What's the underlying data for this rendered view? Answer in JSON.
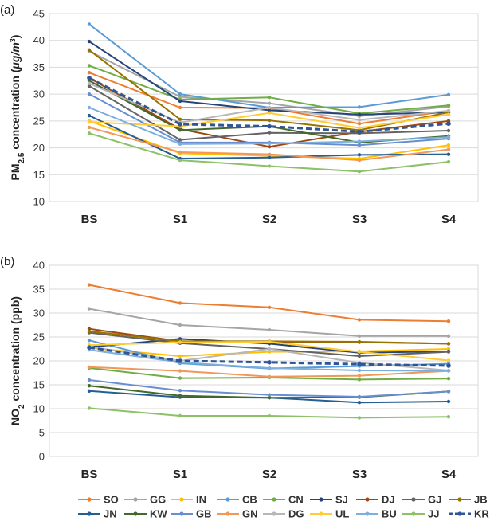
{
  "chart_data": [
    {
      "type": "line",
      "panel_label": "(a)",
      "ylabel": "PM2.5 concentration (μg/m³)",
      "ylabel_parts": {
        "pre": "PM",
        "sub": "2.5",
        "mid": " concentration (",
        "unit": "μg/m",
        "sup": "3",
        "post": ")"
      },
      "ylim": [
        10,
        45
      ],
      "yticks": [
        "10",
        "15",
        "20",
        "25",
        "30",
        "35",
        "40",
        "45"
      ],
      "categories": [
        "BS",
        "S1",
        "S2",
        "S3",
        "S4"
      ],
      "series": [
        {
          "name": "SO",
          "color": "#ED7D31",
          "values": [
            34.0,
            27.5,
            27.4,
            24.5,
            26.9
          ]
        },
        {
          "name": "GG",
          "color": "#A5A5A5",
          "values": [
            38.0,
            29.5,
            28.3,
            25.9,
            27.7
          ]
        },
        {
          "name": "IN",
          "color": "#FFC000",
          "values": [
            25.0,
            19.0,
            18.5,
            18.0,
            20.5
          ]
        },
        {
          "name": "CB",
          "color": "#5B9BD5",
          "values": [
            43.0,
            30.0,
            27.5,
            27.6,
            29.9
          ]
        },
        {
          "name": "CN",
          "color": "#70AD47",
          "values": [
            35.3,
            29.0,
            29.4,
            26.4,
            27.9
          ]
        },
        {
          "name": "SJ",
          "color": "#264478",
          "values": [
            39.8,
            28.7,
            27.0,
            26.2,
            26.6
          ]
        },
        {
          "name": "DJ",
          "color": "#9E480E",
          "values": [
            33.0,
            23.5,
            20.2,
            23.0,
            25.0
          ]
        },
        {
          "name": "GJ",
          "color": "#636363",
          "values": [
            31.5,
            21.5,
            22.8,
            22.7,
            23.2
          ]
        },
        {
          "name": "JB",
          "color": "#997300",
          "values": [
            38.2,
            25.3,
            25.1,
            23.3,
            26.6
          ]
        },
        {
          "name": "JN",
          "color": "#255E91",
          "values": [
            26.0,
            18.0,
            18.2,
            18.7,
            18.8
          ]
        },
        {
          "name": "KW",
          "color": "#43682B",
          "values": [
            32.5,
            23.3,
            24.0,
            21.0,
            22.2
          ]
        },
        {
          "name": "GB",
          "color": "#698ED0",
          "values": [
            30.0,
            21.0,
            21.0,
            20.5,
            21.7
          ]
        },
        {
          "name": "GN",
          "color": "#F1975A",
          "values": [
            23.8,
            19.2,
            18.8,
            17.7,
            19.7
          ]
        },
        {
          "name": "DG",
          "color": "#B7B7B7",
          "values": [
            32.0,
            24.7,
            27.5,
            25.2,
            26.9
          ]
        },
        {
          "name": "UL",
          "color": "#FFCD33",
          "values": [
            24.8,
            24.0,
            26.5,
            23.7,
            26.2
          ]
        },
        {
          "name": "BU",
          "color": "#7CAFDD",
          "values": [
            27.5,
            20.7,
            20.8,
            21.2,
            22.0
          ]
        },
        {
          "name": "JJ",
          "color": "#8CC168",
          "values": [
            22.7,
            17.7,
            16.6,
            15.6,
            17.4
          ]
        },
        {
          "name": "KR",
          "color": "#2F5597",
          "dashed": true,
          "values": [
            33.0,
            24.4,
            24.0,
            23.0,
            24.5
          ]
        }
      ]
    },
    {
      "type": "line",
      "panel_label": "(b)",
      "ylabel": "NO2 concentration (ppb)",
      "ylabel_parts": {
        "pre": "NO",
        "sub": "2",
        "post": " concentration (ppb)"
      },
      "ylim": [
        0,
        40
      ],
      "yticks": [
        "0",
        "5",
        "10",
        "15",
        "20",
        "25",
        "30",
        "35",
        "40"
      ],
      "categories": [
        "BS",
        "S1",
        "S2",
        "S3",
        "S4"
      ],
      "series": [
        {
          "name": "SO",
          "color": "#ED7D31",
          "values": [
            35.9,
            32.1,
            31.2,
            28.6,
            28.3
          ]
        },
        {
          "name": "GG",
          "color": "#A5A5A5",
          "values": [
            30.9,
            27.5,
            26.5,
            25.2,
            25.2
          ]
        },
        {
          "name": "IN",
          "color": "#FFC000",
          "values": [
            22.7,
            21.0,
            21.9,
            22.0,
            22.5
          ]
        },
        {
          "name": "CB",
          "color": "#5B9BD5",
          "values": [
            24.3,
            19.5,
            18.4,
            18.9,
            19.4
          ]
        },
        {
          "name": "CN",
          "color": "#70AD47",
          "values": [
            18.5,
            16.4,
            16.5,
            16.1,
            16.3
          ]
        },
        {
          "name": "SJ",
          "color": "#264478",
          "values": [
            22.9,
            24.6,
            23.6,
            21.7,
            22.0
          ]
        },
        {
          "name": "DJ",
          "color": "#9E480E",
          "values": [
            26.7,
            24.1,
            23.9,
            23.9,
            23.6
          ]
        },
        {
          "name": "GJ",
          "color": "#636363",
          "values": [
            25.9,
            23.7,
            22.5,
            21.0,
            21.9
          ]
        },
        {
          "name": "JB",
          "color": "#997300",
          "values": [
            26.2,
            24.1,
            24.1,
            24.0,
            23.6
          ]
        },
        {
          "name": "JN",
          "color": "#255E91",
          "values": [
            13.7,
            12.4,
            12.3,
            11.3,
            11.5
          ]
        },
        {
          "name": "KW",
          "color": "#43682B",
          "values": [
            14.8,
            12.7,
            12.3,
            12.4,
            13.6
          ]
        },
        {
          "name": "GB",
          "color": "#698ED0",
          "values": [
            16.0,
            13.8,
            12.9,
            12.5,
            13.6
          ]
        },
        {
          "name": "GN",
          "color": "#F1975A",
          "values": [
            18.7,
            17.9,
            16.7,
            16.9,
            17.9
          ]
        },
        {
          "name": "DG",
          "color": "#B7B7B7",
          "values": [
            23.0,
            20.0,
            22.5,
            19.6,
            18.0
          ]
        },
        {
          "name": "UL",
          "color": "#FFCD33",
          "values": [
            23.3,
            23.9,
            24.0,
            21.9,
            20.1
          ]
        },
        {
          "name": "BU",
          "color": "#7CAFDD",
          "values": [
            22.3,
            19.7,
            18.5,
            18.0,
            17.9
          ]
        },
        {
          "name": "JJ",
          "color": "#8CC168",
          "values": [
            10.1,
            8.5,
            8.5,
            8.1,
            8.3
          ]
        },
        {
          "name": "KR",
          "color": "#2F5597",
          "dashed": true,
          "values": [
            22.8,
            20.0,
            19.7,
            19.3,
            19.0
          ]
        }
      ]
    }
  ],
  "legend": {
    "placement": "bottom",
    "rows": [
      [
        "SO",
        "GG",
        "IN",
        "CB",
        "CN",
        "SJ",
        "DJ",
        "GJ",
        "JB"
      ],
      [
        "JN",
        "KW",
        "GB",
        "GN",
        "DG",
        "UL",
        "BU",
        "JJ",
        "KR"
      ]
    ]
  }
}
